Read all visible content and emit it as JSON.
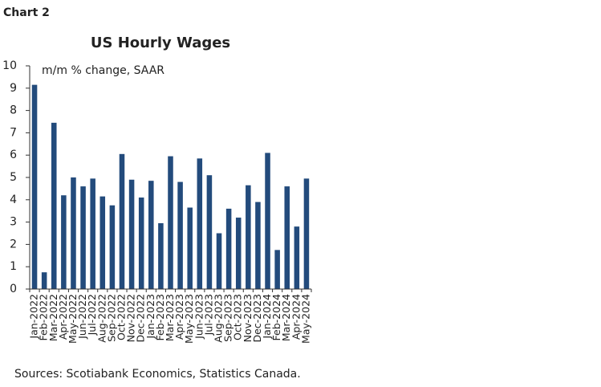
{
  "chart_data": {
    "type": "bar",
    "figure_label": "Chart 2",
    "title": "US Hourly Wages",
    "subtitle": "m/m % change, SAAR",
    "source": "Sources: Scotiabank Economics, Statistics Canada.",
    "categories": [
      "Jan-2022",
      "Feb-2022",
      "Mar-2022",
      "Apr-2022",
      "May-2022",
      "Jun-2022",
      "Jul-2022",
      "Aug-2022",
      "Sep-2022",
      "Oct-2022",
      "Nov-2022",
      "Dec-2022",
      "Jan-2023",
      "Feb-2023",
      "Mar-2023",
      "Apr-2023",
      "May-2023",
      "Jun-2023",
      "Jul-2023",
      "Aug-2023",
      "Sep-2023",
      "Oct-2023",
      "Nov-2023",
      "Dec-2023",
      "Jan-2024",
      "Feb-2024",
      "Mar-2024",
      "Apr-2024",
      "May-2024"
    ],
    "values": [
      9.15,
      0.75,
      7.45,
      4.2,
      5.0,
      4.6,
      4.95,
      4.15,
      3.75,
      6.05,
      4.9,
      4.1,
      4.85,
      2.95,
      5.95,
      4.8,
      3.65,
      5.85,
      5.1,
      2.5,
      3.6,
      3.2,
      4.65,
      3.9,
      6.1,
      1.75,
      4.6,
      2.8,
      4.95
    ],
    "color": "#234b7c",
    "ylim": [
      0,
      10
    ],
    "yticks": [
      0,
      1,
      2,
      3,
      4,
      5,
      6,
      7,
      8,
      9,
      10
    ],
    "grid": false
  }
}
